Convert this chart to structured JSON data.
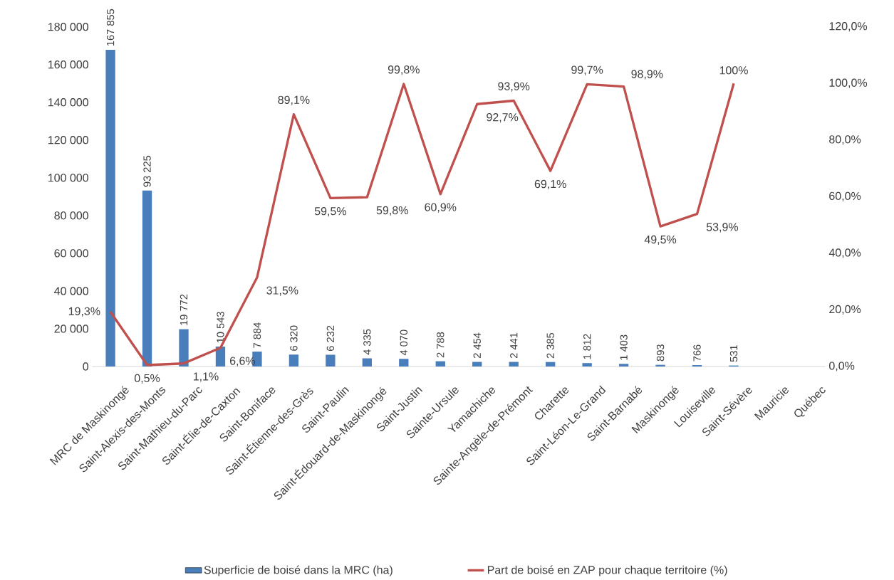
{
  "chart_data": {
    "type": "bar",
    "categories": [
      "MRC de Maskinongé",
      "Saint-Alexis-des-Monts",
      "Saint-Mathieu-du-Parc",
      "Saint-Élie-de-Caxton",
      "Saint-Boniface",
      "Saint-Étienne-des-Grès",
      "Saint-Paulin",
      "Saint-Édouard-de-Maskinongé",
      "Saint-Justin",
      "Sainte-Ursule",
      "Yamachiche",
      "Sainte-Angèle-de-Prémont",
      "Charette",
      "Saint-Léon-Le-Grand",
      "Saint-Barnabé",
      "Maskinongé",
      "Louiseville",
      "Saint-Sévère",
      "Mauricie",
      "Québec"
    ],
    "series": [
      {
        "name": "Superficie de boisé dans la MRC (ha)",
        "color": "#4a7ebb",
        "values": [
          167855,
          93225,
          19772,
          10543,
          7884,
          6320,
          6232,
          4335,
          4070,
          2788,
          2454,
          2441,
          2385,
          1812,
          1403,
          893,
          766,
          531,
          null,
          null
        ],
        "value_labels": [
          "167 855",
          "93 225",
          "19 772",
          "10 543",
          "7 884",
          "6 320",
          "6 232",
          "4 335",
          "4 070",
          "2 788",
          "2 454",
          "2 441",
          "2 385",
          "1 812",
          "1 403",
          "893",
          "766",
          "531",
          null,
          null
        ]
      },
      {
        "name": "Part de boisé en ZAP pour chaque territoire (%)",
        "type": "line",
        "axis": "y2",
        "color": "#c0504d",
        "values": [
          19.3,
          0.5,
          1.1,
          6.6,
          31.5,
          89.1,
          59.5,
          59.8,
          99.8,
          60.9,
          92.7,
          93.9,
          69.1,
          99.7,
          98.9,
          49.5,
          53.9,
          100,
          null,
          null
        ],
        "value_labels": [
          "19,3%",
          "0,5%",
          "1,1%",
          "6,6%",
          "31,5%",
          "89,1%",
          "59,5%",
          "59,8%",
          "99,8%",
          "60,9%",
          "92,7%",
          "93,9%",
          "69,1%",
          "99,7%",
          "98,9%",
          "49,5%",
          "53,9%",
          "100%",
          null,
          null
        ]
      }
    ],
    "ylim": [
      0,
      180000
    ],
    "yticks": [
      {
        "value": 0,
        "label": "0"
      },
      {
        "value": 20000,
        "label": "20 000"
      },
      {
        "value": 40000,
        "label": "40 000"
      },
      {
        "value": 60000,
        "label": "60 000"
      },
      {
        "value": 80000,
        "label": "80 000"
      },
      {
        "value": 100000,
        "label": "100 000"
      },
      {
        "value": 120000,
        "label": "120 000"
      },
      {
        "value": 140000,
        "label": "140 000"
      },
      {
        "value": 160000,
        "label": "160 000"
      },
      {
        "value": 180000,
        "label": "180 000"
      }
    ],
    "y2lim": [
      0,
      120
    ],
    "y2ticks": [
      {
        "value": 0,
        "label": "0,0%"
      },
      {
        "value": 20,
        "label": "20,0%"
      },
      {
        "value": 40,
        "label": "40,0%"
      },
      {
        "value": 60,
        "label": "60,0%"
      },
      {
        "value": 80,
        "label": "80,0%"
      },
      {
        "value": 100,
        "label": "100,0%"
      },
      {
        "value": 120,
        "label": "120,0%"
      }
    ],
    "legend": "bottom",
    "grid": false
  }
}
